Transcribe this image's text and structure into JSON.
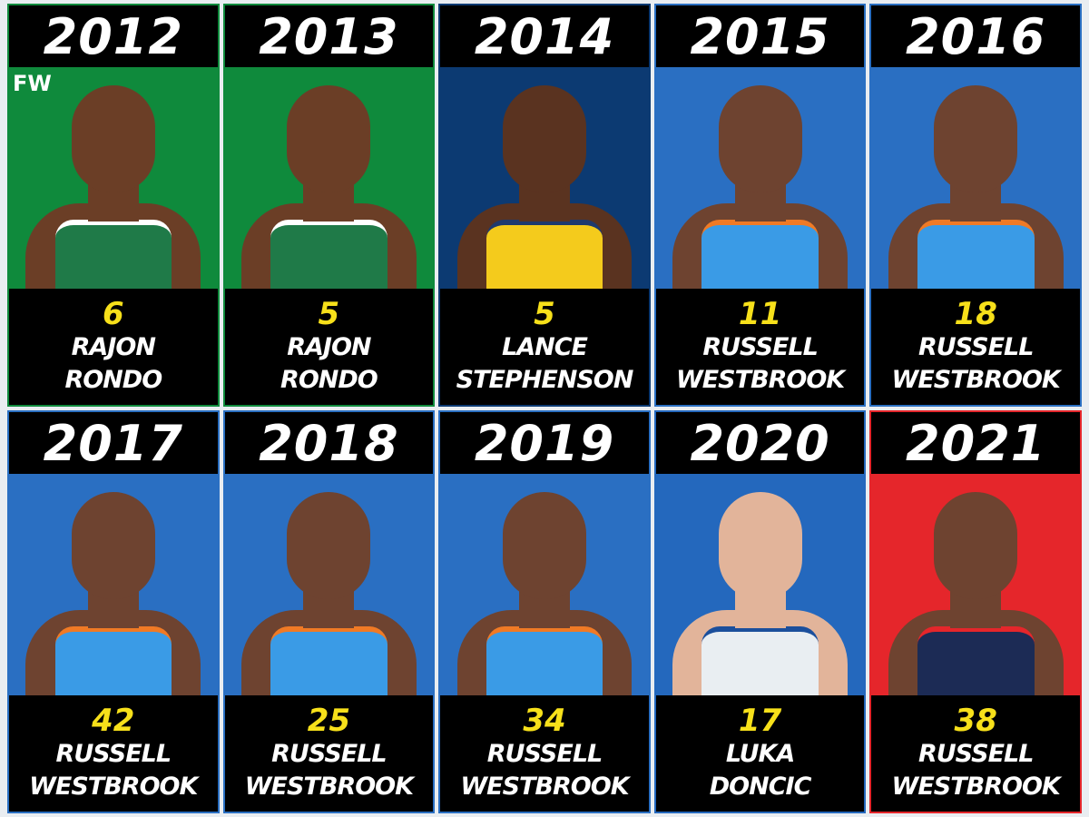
{
  "watermark": "FW",
  "cards": [
    {
      "year": "2012",
      "value": "6",
      "name_line1": "RAJON",
      "name_line2": "RONDO",
      "bg": "#0f8a3c",
      "skin": "#6b3e26",
      "jersey": "#1f7a48",
      "trim": "#ffffff"
    },
    {
      "year": "2013",
      "value": "5",
      "name_line1": "RAJON",
      "name_line2": "RONDO",
      "bg": "#0f8a3c",
      "skin": "#6b3e26",
      "jersey": "#1f7a48",
      "trim": "#ffffff"
    },
    {
      "year": "2014",
      "value": "5",
      "name_line1": "LANCE",
      "name_line2": "STEPHENSON",
      "bg": "#0c3a72",
      "skin": "#5a3320",
      "jersey": "#f4cb1c",
      "trim": "#1e3a6e"
    },
    {
      "year": "2015",
      "value": "11",
      "name_line1": "RUSSELL",
      "name_line2": "WESTBROOK",
      "bg": "#2a6fc2",
      "skin": "#6e4330",
      "jersey": "#3a9be6",
      "trim": "#f07a25"
    },
    {
      "year": "2016",
      "value": "18",
      "name_line1": "RUSSELL",
      "name_line2": "WESTBROOK",
      "bg": "#2a6fc2",
      "skin": "#6e4330",
      "jersey": "#3a9be6",
      "trim": "#f07a25"
    },
    {
      "year": "2017",
      "value": "42",
      "name_line1": "RUSSELL",
      "name_line2": "WESTBROOK",
      "bg": "#2a6fc2",
      "skin": "#6e4330",
      "jersey": "#3a9be6",
      "trim": "#f07a25"
    },
    {
      "year": "2018",
      "value": "25",
      "name_line1": "RUSSELL",
      "name_line2": "WESTBROOK",
      "bg": "#2a6fc2",
      "skin": "#6e4330",
      "jersey": "#3a9be6",
      "trim": "#f07a25"
    },
    {
      "year": "2019",
      "value": "34",
      "name_line1": "RUSSELL",
      "name_line2": "WESTBROOK",
      "bg": "#2a6fc2",
      "skin": "#6e4330",
      "jersey": "#3a9be6",
      "trim": "#f07a25"
    },
    {
      "year": "2020",
      "value": "17",
      "name_line1": "LUKA",
      "name_line2": "DONCIC",
      "bg": "#2468bd",
      "skin": "#e2b49a",
      "jersey": "#e9eef2",
      "trim": "#1b4f9c"
    },
    {
      "year": "2021",
      "value": "38",
      "name_line1": "RUSSELL",
      "name_line2": "WESTBROOK",
      "bg": "#e5262b",
      "skin": "#6e4330",
      "jersey": "#1c2b55",
      "trim": "#e5262b"
    }
  ]
}
